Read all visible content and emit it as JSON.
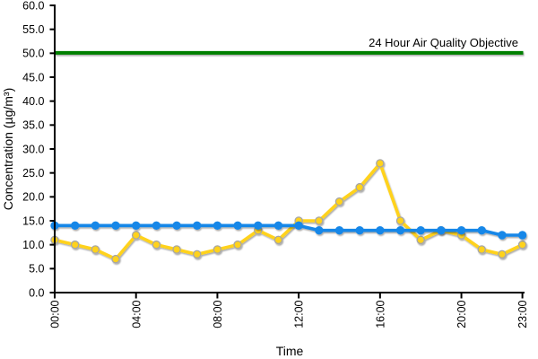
{
  "chart_data": {
    "type": "line",
    "x": [
      "00:00",
      "01:00",
      "02:00",
      "03:00",
      "04:00",
      "05:00",
      "06:00",
      "07:00",
      "08:00",
      "09:00",
      "10:00",
      "11:00",
      "12:00",
      "13:00",
      "14:00",
      "15:00",
      "16:00",
      "17:00",
      "18:00",
      "19:00",
      "20:00",
      "21:00",
      "22:00",
      "23:00"
    ],
    "x_tick_hours": [
      0,
      4,
      8,
      12,
      16,
      20,
      23
    ],
    "x_tick_labels": [
      "00:00",
      "04:00",
      "08:00",
      "12:00",
      "16:00",
      "20:00",
      "23:00"
    ],
    "series": [
      {
        "name": "yellow-series",
        "color": "#FFD21E",
        "marker_border": "#A6A6A6",
        "values": [
          11,
          10,
          9,
          7,
          12,
          10,
          9,
          8,
          9,
          10,
          13,
          11,
          15,
          15,
          19,
          22,
          27,
          15,
          11,
          13,
          12,
          9,
          8,
          10
        ]
      },
      {
        "name": "blue-series",
        "color": "#1787E8",
        "marker_border": null,
        "values": [
          14,
          14,
          14,
          14,
          14,
          14,
          14,
          14,
          14,
          14,
          14,
          14,
          14,
          13,
          13,
          13,
          13,
          13,
          13,
          13,
          13,
          13,
          12,
          12
        ]
      }
    ],
    "reference_line": {
      "value": 50.0,
      "label": "24 Hour Air Quality Objective",
      "color": "#067F06"
    },
    "xlabel": "Time",
    "ylabel": "Concentration (µg/m³)",
    "ylim": [
      0,
      60
    ],
    "ytick_step": 5,
    "ytick_decimals": 1,
    "grid": false,
    "legend": false
  }
}
